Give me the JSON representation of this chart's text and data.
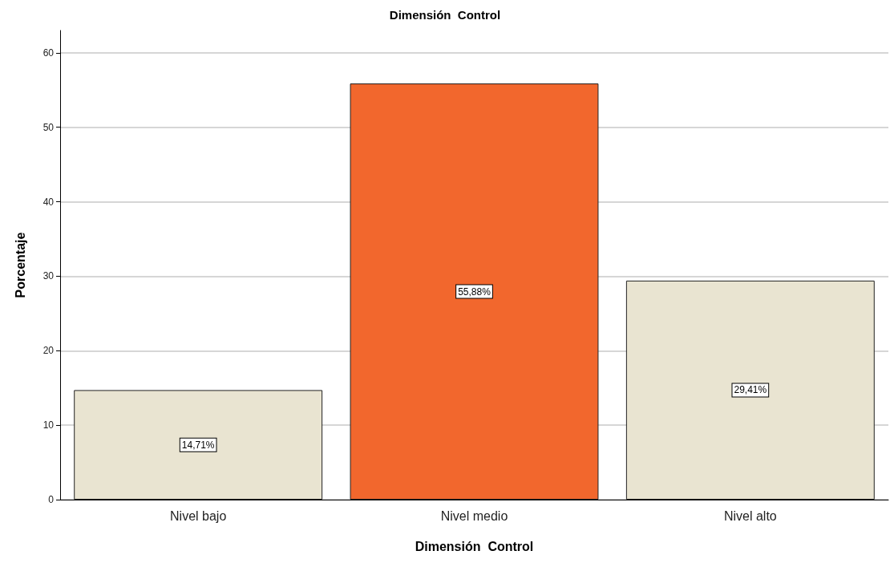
{
  "chart_data": {
    "type": "bar",
    "title": "Dimensión  Control",
    "xlabel": "Dimensión  Control",
    "ylabel": "Porcentaje",
    "categories": [
      "Nivel bajo",
      "Nivel medio",
      "Nivel alto"
    ],
    "values": [
      14.71,
      55.88,
      29.41
    ],
    "colors": [
      "#e9e4d1",
      "#f2672d",
      "#e9e4d1"
    ],
    "value_labels": [
      "14,71%",
      "55,88%",
      "29,41%"
    ],
    "ylim": [
      0,
      63
    ],
    "yticks": [
      0,
      10,
      20,
      30,
      40,
      50,
      60
    ],
    "grid": "y"
  }
}
